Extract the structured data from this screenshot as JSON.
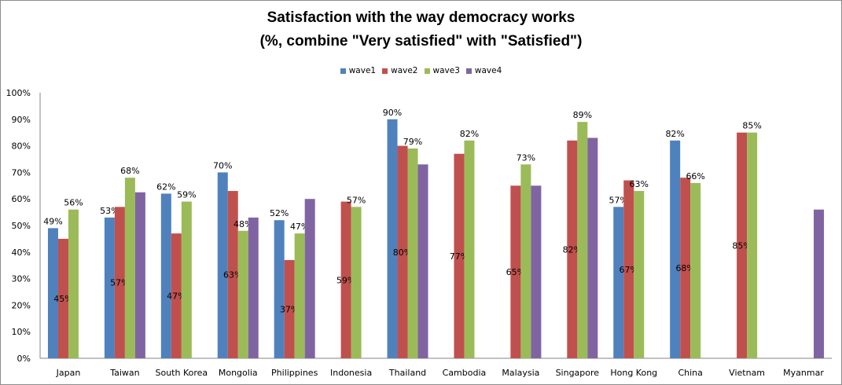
{
  "chart_data": {
    "type": "bar",
    "title": "Satisfaction with the way democracy works",
    "subtitle": "(%, combine \"Very satisfied\" with \"Satisfied\")",
    "xlabel": "",
    "ylabel": "",
    "ylim": [
      0,
      100
    ],
    "yticks": [
      "0%",
      "10%",
      "20%",
      "30%",
      "40%",
      "50%",
      "60%",
      "70%",
      "80%",
      "90%",
      "100%"
    ],
    "grid": false,
    "legend_position": "top-center",
    "categories": [
      "Japan",
      "Taiwan",
      "South Korea",
      "Mongolia",
      "Philippines",
      "Indonesia",
      "Thailand",
      "Cambodia",
      "Malaysia",
      "Singapore",
      "Hong Kong",
      "China",
      "Vietnam",
      "Myanmar"
    ],
    "series": [
      {
        "name": "wave1",
        "color": "#4f81bd",
        "values": [
          49,
          53,
          62,
          70,
          52,
          null,
          90,
          null,
          null,
          null,
          57,
          82,
          null,
          null
        ],
        "labels": [
          "49%",
          "53%",
          "62%",
          "70%",
          "52%",
          null,
          "90%",
          null,
          null,
          null,
          "57%",
          "82%",
          null,
          null
        ]
      },
      {
        "name": "wave2",
        "color": "#c0504d",
        "values": [
          45,
          57,
          47,
          63,
          37,
          59,
          80,
          77,
          65,
          82,
          67,
          68,
          85,
          null
        ],
        "labels": [
          "45%",
          "57%",
          "47%",
          "63%",
          "37%",
          "59%",
          "80%",
          "77%",
          "65%",
          "82%",
          "67%",
          "68%",
          "85%",
          null
        ]
      },
      {
        "name": "wave3",
        "color": "#9bbb59",
        "values": [
          56,
          68,
          59,
          48,
          47,
          57,
          79,
          82,
          73,
          89,
          63,
          66,
          85,
          null
        ],
        "labels": [
          "56%",
          "68%",
          "59%",
          "48%",
          "47%",
          "57%",
          "79%",
          "82%",
          "73%",
          "89%",
          "63%",
          "66%",
          "85%",
          null
        ]
      },
      {
        "name": "wave4",
        "color": "#8064a2",
        "values": [
          null,
          62.5,
          null,
          53,
          60,
          null,
          73,
          null,
          65,
          83,
          null,
          null,
          null,
          56
        ],
        "labels": [
          null,
          null,
          null,
          null,
          null,
          null,
          null,
          null,
          null,
          null,
          null,
          null,
          null,
          null
        ]
      }
    ]
  }
}
